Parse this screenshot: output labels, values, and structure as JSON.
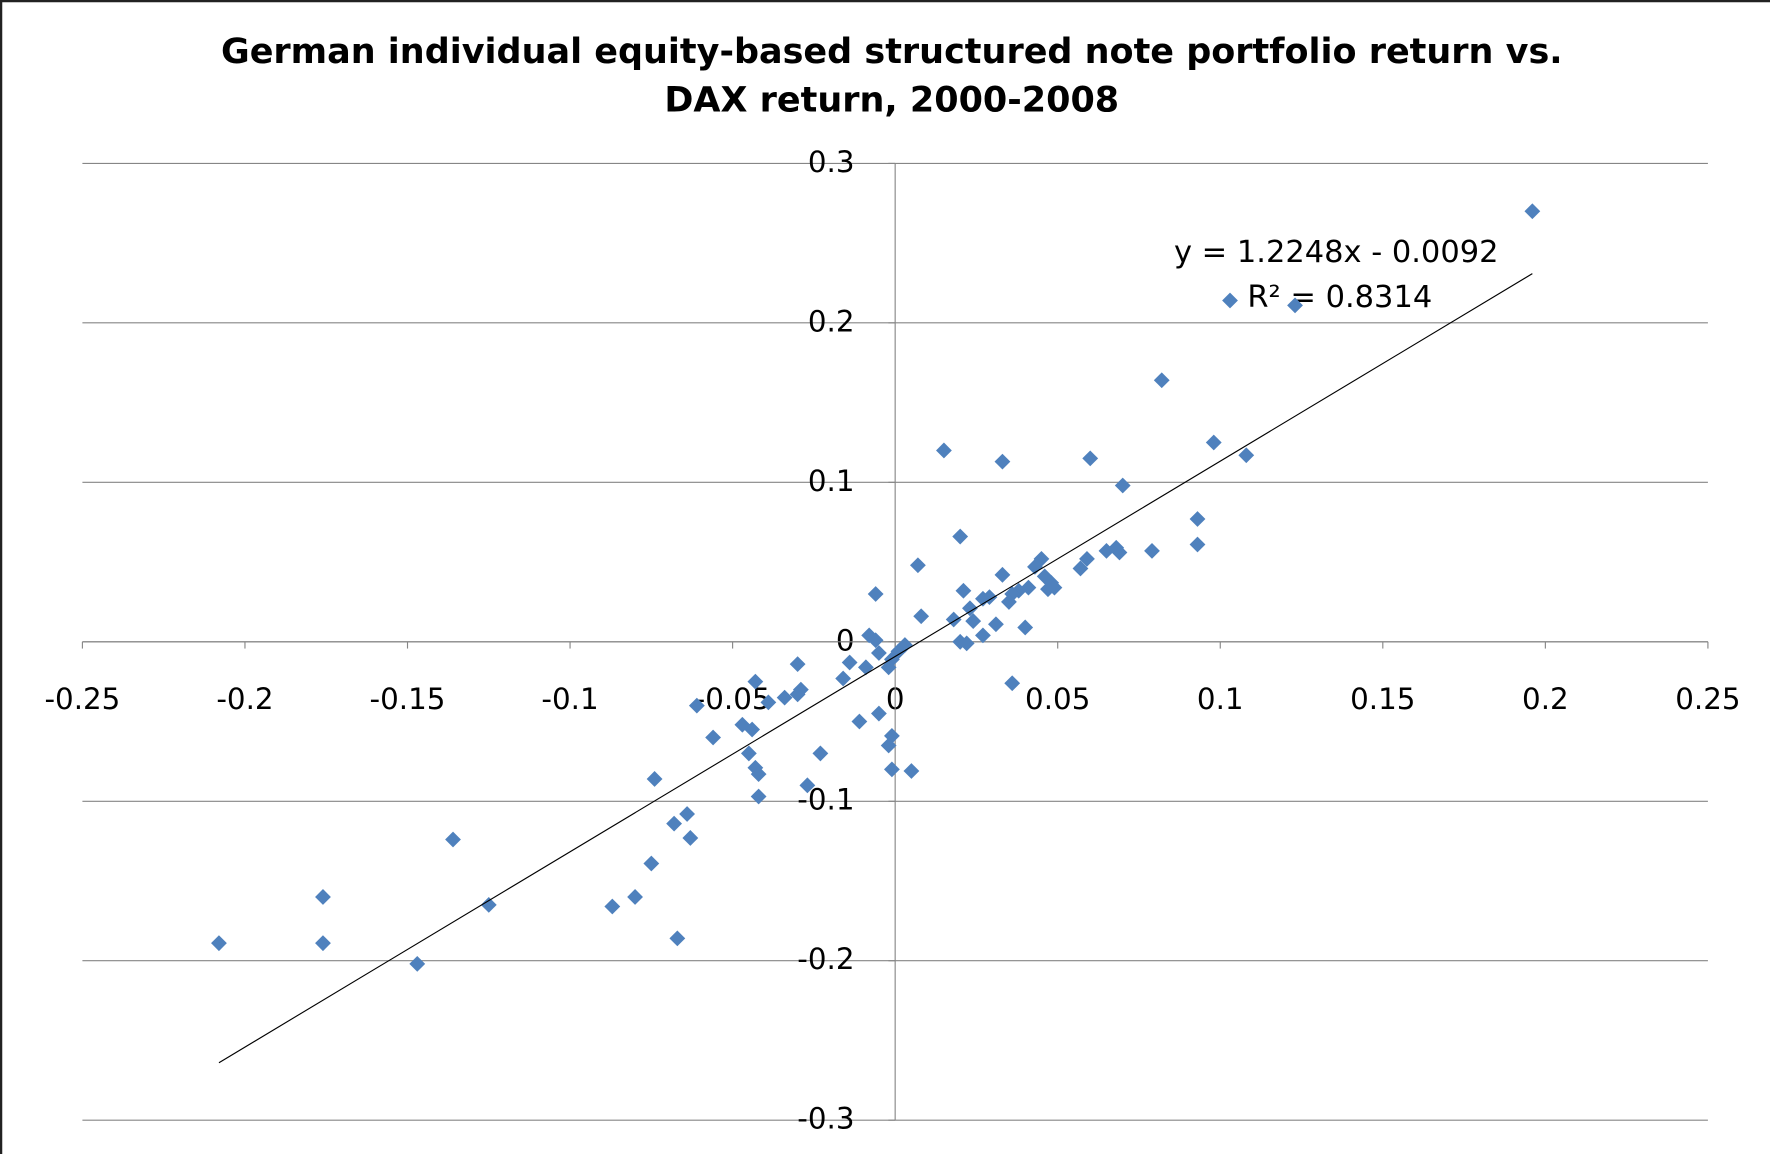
{
  "chart_data": {
    "type": "scatter",
    "title": "German individual equity-based structured note portfolio return vs.\nDAX return, 2000-2008",
    "color": "#4f81bd",
    "xlim": [
      -0.25,
      0.25
    ],
    "xticks": [
      -0.25,
      -0.2,
      -0.15,
      -0.1,
      -0.05,
      0,
      0.05,
      0.1,
      0.15,
      0.2,
      0.25
    ],
    "ylim": [
      -0.3,
      0.3
    ],
    "yticks": [
      -0.3,
      -0.2,
      -0.1,
      0,
      0.1,
      0.2,
      0.3
    ],
    "grid": true,
    "x": [
      0.196,
      0.103,
      0.123,
      0.082,
      0.098,
      0.108,
      0.06,
      0.033,
      0.015,
      0.07,
      0.02,
      0.093,
      0.093,
      0.079,
      0.068,
      0.069,
      0.065,
      0.059,
      0.057,
      0.007,
      0.045,
      0.043,
      0.033,
      0.046,
      0.048,
      0.049,
      0.047,
      0.041,
      0.038,
      0.036,
      0.035,
      0.029,
      0.027,
      0.021,
      -0.006,
      0.008,
      0.018,
      0.023,
      0.024,
      0.031,
      0.04,
      0.027,
      0.02,
      0.022,
      -0.008,
      -0.006,
      0.003,
      0.001,
      -0.005,
      -0.001,
      -0.002,
      -0.009,
      -0.014,
      -0.016,
      -0.03,
      -0.043,
      0.036,
      -0.029,
      -0.03,
      -0.034,
      -0.039,
      -0.061,
      -0.005,
      -0.011,
      -0.047,
      -0.044,
      -0.056,
      -0.001,
      -0.002,
      -0.023,
      -0.045,
      -0.043,
      -0.042,
      -0.001,
      0.005,
      -0.074,
      -0.027,
      -0.042,
      -0.064,
      -0.068,
      -0.063,
      -0.136,
      -0.075,
      -0.176,
      -0.08,
      -0.125,
      -0.087,
      -0.067,
      -0.208,
      -0.176,
      -0.147
    ],
    "series": [
      {
        "name": "Portfolio return",
        "color": "#4f81bd",
        "values": [
          0.27,
          0.214,
          0.211,
          0.164,
          0.125,
          0.117,
          0.115,
          0.113,
          0.12,
          0.098,
          0.066,
          0.077,
          0.061,
          0.057,
          0.059,
          0.056,
          0.057,
          0.052,
          0.046,
          0.048,
          0.052,
          0.047,
          0.042,
          0.041,
          0.037,
          0.034,
          0.033,
          0.034,
          0.032,
          0.03,
          0.025,
          0.028,
          0.027,
          0.032,
          0.03,
          0.016,
          0.014,
          0.021,
          0.013,
          0.011,
          0.009,
          0.004,
          0.0,
          -0.001,
          0.004,
          0.001,
          -0.002,
          -0.006,
          -0.007,
          -0.011,
          -0.016,
          -0.016,
          -0.013,
          -0.023,
          -0.014,
          -0.025,
          -0.026,
          -0.03,
          -0.033,
          -0.035,
          -0.038,
          -0.04,
          -0.045,
          -0.05,
          -0.052,
          -0.055,
          -0.06,
          -0.059,
          -0.065,
          -0.07,
          -0.07,
          -0.079,
          -0.083,
          -0.08,
          -0.081,
          -0.086,
          -0.09,
          -0.097,
          -0.108,
          -0.114,
          -0.123,
          -0.124,
          -0.139,
          -0.16,
          -0.16,
          -0.165,
          -0.166,
          -0.186,
          -0.189,
          -0.189,
          -0.202
        ]
      }
    ],
    "trendline": {
      "equation": "y = 1.2248x - 0.0092",
      "r_squared": "R² = 0.8314",
      "slope": 1.2248,
      "intercept": -0.0092
    }
  }
}
